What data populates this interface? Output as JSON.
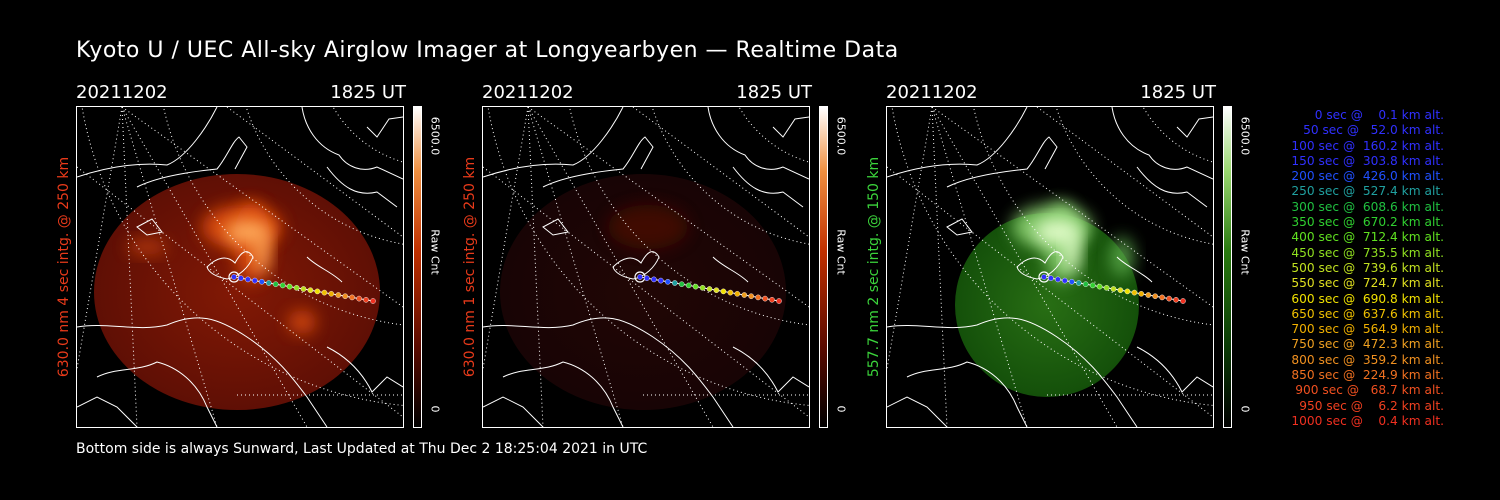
{
  "title": "Kyoto U / UEC All-sky Airglow Imager at Longyearbyen — Realtime Data",
  "footer": "Bottom side is always Sunward, Last Updated at Thu Dec  2 18:25:04 2021 in UTC",
  "panels": [
    {
      "date": "20211202",
      "time": "1825 UT",
      "side_label": "630.0 nm 4 sec intg. @ 250 km",
      "label_color": "#e83a1a",
      "colorbar_max": "6500.0",
      "colorbar_unit": "Raw Cnt",
      "colorbar_min": "0",
      "colormap": "red",
      "brightness": 1.0
    },
    {
      "date": "20211202",
      "time": "1825 UT",
      "side_label": "630.0 nm 1 sec intg. @ 250 km",
      "label_color": "#e83a1a",
      "colorbar_max": "6500.0",
      "colorbar_unit": "Raw Cnt",
      "colorbar_min": "0",
      "colormap": "red",
      "brightness": 0.25
    },
    {
      "date": "20211202",
      "time": "1825 UT",
      "side_label": "557.7 nm 2 sec intg. @ 150 km",
      "label_color": "#3bd33b",
      "colorbar_max": "6500.0",
      "colorbar_unit": "Raw Cnt",
      "colorbar_min": "0",
      "colormap": "green",
      "brightness": 1.0
    }
  ],
  "legend": [
    {
      "text": "0 sec @    0.1 km alt.",
      "color": "#3030ff"
    },
    {
      "text": "50 sec @   52.0 km alt.",
      "color": "#3030ff"
    },
    {
      "text": "100 sec @  160.2 km alt.",
      "color": "#3030ff"
    },
    {
      "text": "150 sec @  303.8 km alt.",
      "color": "#3030ff"
    },
    {
      "text": "200 sec @  426.0 km alt.",
      "color": "#2050ff"
    },
    {
      "text": "250 sec @  527.4 km alt.",
      "color": "#20a0a0"
    },
    {
      "text": "300 sec @  608.6 km alt.",
      "color": "#20c040"
    },
    {
      "text": "350 sec @  670.2 km alt.",
      "color": "#30d030"
    },
    {
      "text": "400 sec @  712.4 km alt.",
      "color": "#60e020"
    },
    {
      "text": "450 sec @  735.5 km alt.",
      "color": "#90e020"
    },
    {
      "text": "500 sec @  739.6 km alt.",
      "color": "#c0e020"
    },
    {
      "text": "550 sec @  724.7 km alt.",
      "color": "#e0e020"
    },
    {
      "text": "600 sec @  690.8 km alt.",
      "color": "#f0e000"
    },
    {
      "text": "650 sec @  637.6 km alt.",
      "color": "#f0c000"
    },
    {
      "text": "700 sec @  564.9 km alt.",
      "color": "#f0b000"
    },
    {
      "text": "750 sec @  472.3 km alt.",
      "color": "#f0a020"
    },
    {
      "text": "800 sec @  359.2 km alt.",
      "color": "#f09020"
    },
    {
      "text": "850 sec @  224.9 km alt.",
      "color": "#f07020"
    },
    {
      "text": "900 sec @   68.7 km alt.",
      "color": "#f05020"
    },
    {
      "text": "950 sec @    6.2 km alt.",
      "color": "#f04020"
    },
    {
      "text": "1000 sec @    0.4 km alt.",
      "color": "#f03020"
    }
  ]
}
